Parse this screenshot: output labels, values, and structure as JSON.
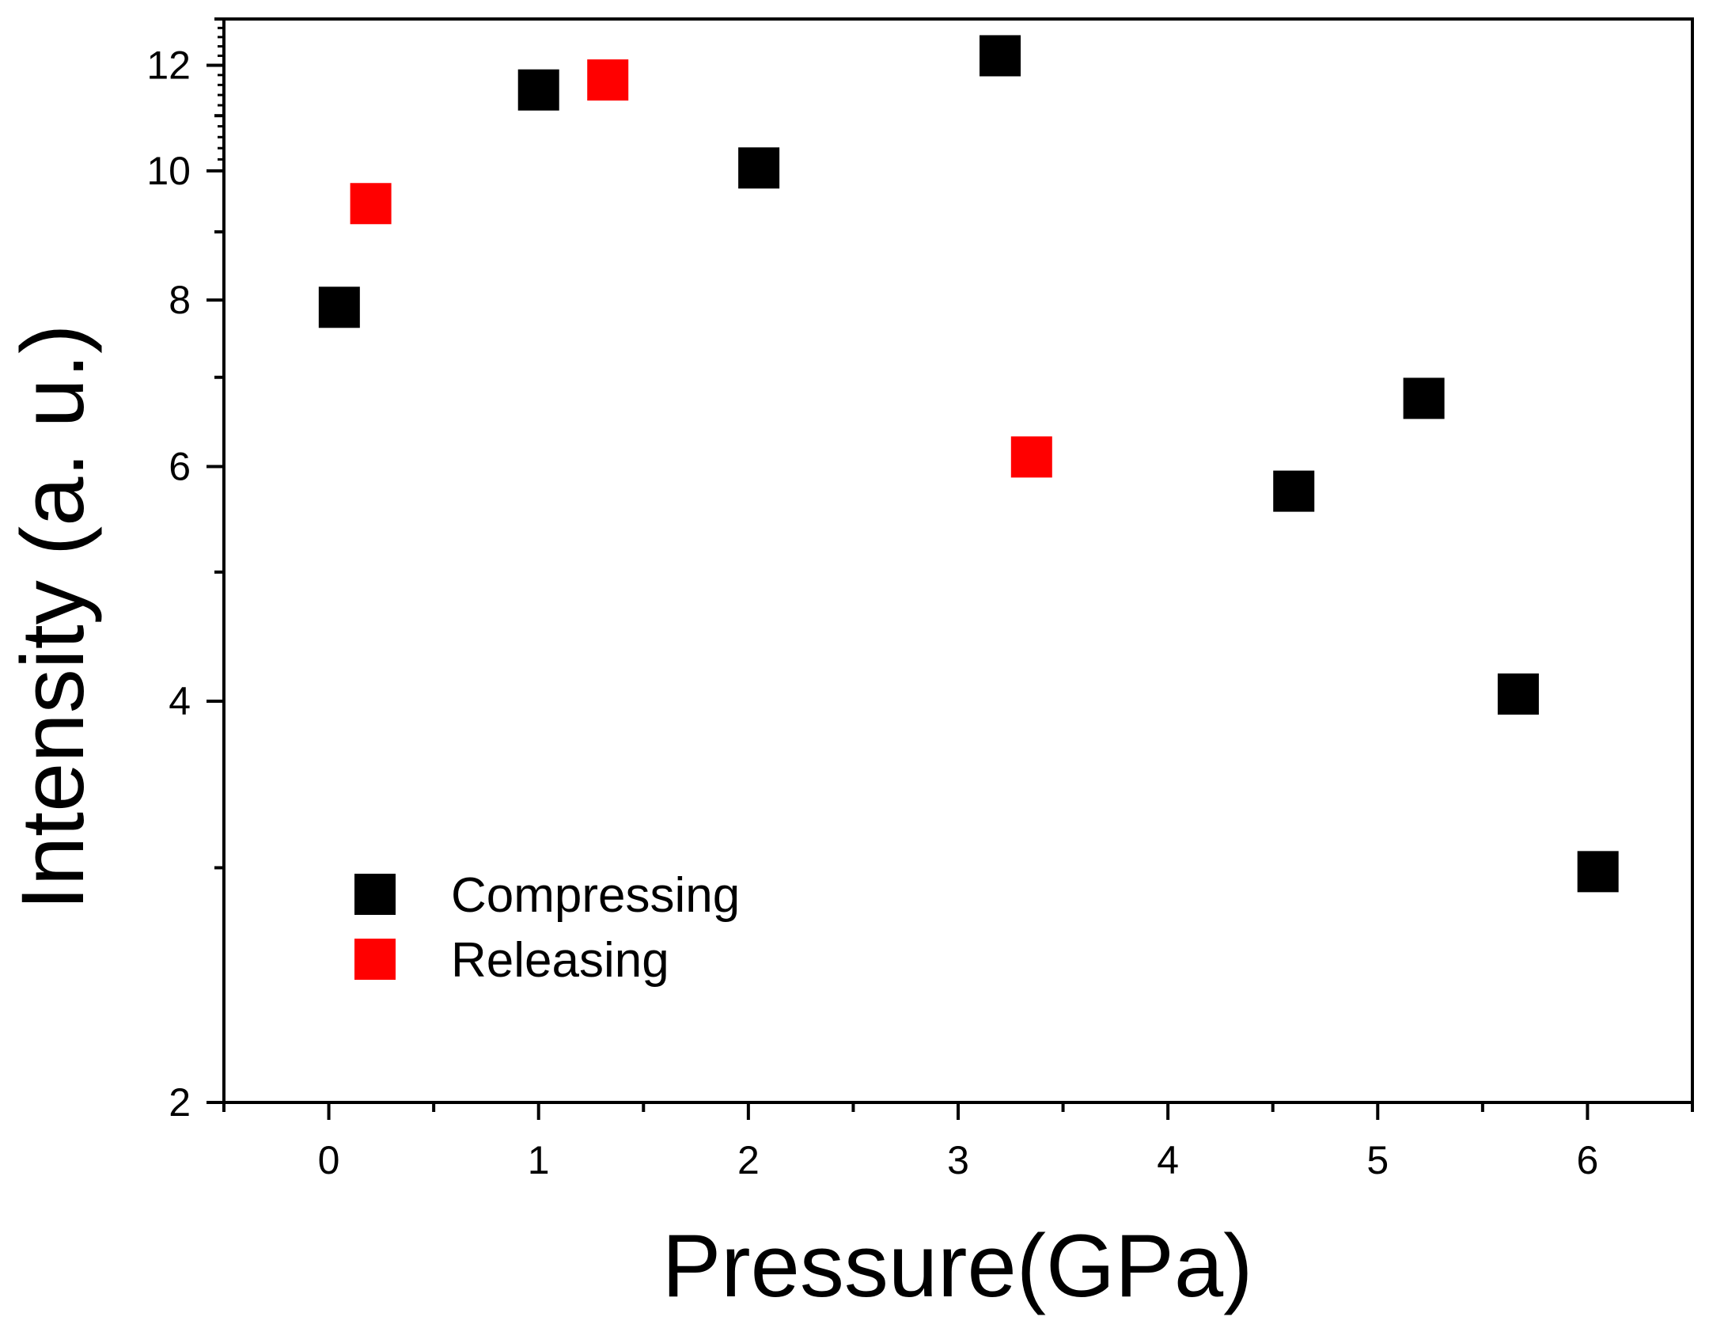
{
  "chart_data": {
    "type": "scatter",
    "title": "",
    "xlabel": "Pressure(GPa)",
    "ylabel": "Intensity (a. u.)",
    "xlim": [
      -0.5,
      6.5
    ],
    "ylim": [
      2,
      13
    ],
    "yscale": "log",
    "grid": false,
    "x_ticks": [
      0,
      1,
      2,
      3,
      4,
      5,
      6
    ],
    "x_minor_ticks": [
      -0.5,
      0.5,
      1.5,
      2.5,
      3.5,
      4.5,
      5.5,
      6.5
    ],
    "y_ticks": [
      2,
      4,
      6,
      8,
      10,
      12
    ],
    "y_minor_ticks": [
      3,
      5,
      7,
      9,
      11,
      13
    ],
    "legend_position": "lower-left",
    "series": [
      {
        "name": "Compressing",
        "color": "#000000",
        "marker": "square",
        "points": [
          {
            "x": 0.05,
            "y": 7.9
          },
          {
            "x": 1.0,
            "y": 11.5
          },
          {
            "x": 2.05,
            "y": 10.05
          },
          {
            "x": 3.2,
            "y": 12.2
          },
          {
            "x": 4.6,
            "y": 5.75
          },
          {
            "x": 5.22,
            "y": 6.75
          },
          {
            "x": 5.67,
            "y": 4.05
          },
          {
            "x": 6.05,
            "y": 2.98
          }
        ]
      },
      {
        "name": "Releasing",
        "color": "#ff0000",
        "marker": "square",
        "points": [
          {
            "x": 0.2,
            "y": 9.45
          },
          {
            "x": 1.33,
            "y": 11.7
          },
          {
            "x": 3.35,
            "y": 6.1
          }
        ]
      }
    ]
  }
}
